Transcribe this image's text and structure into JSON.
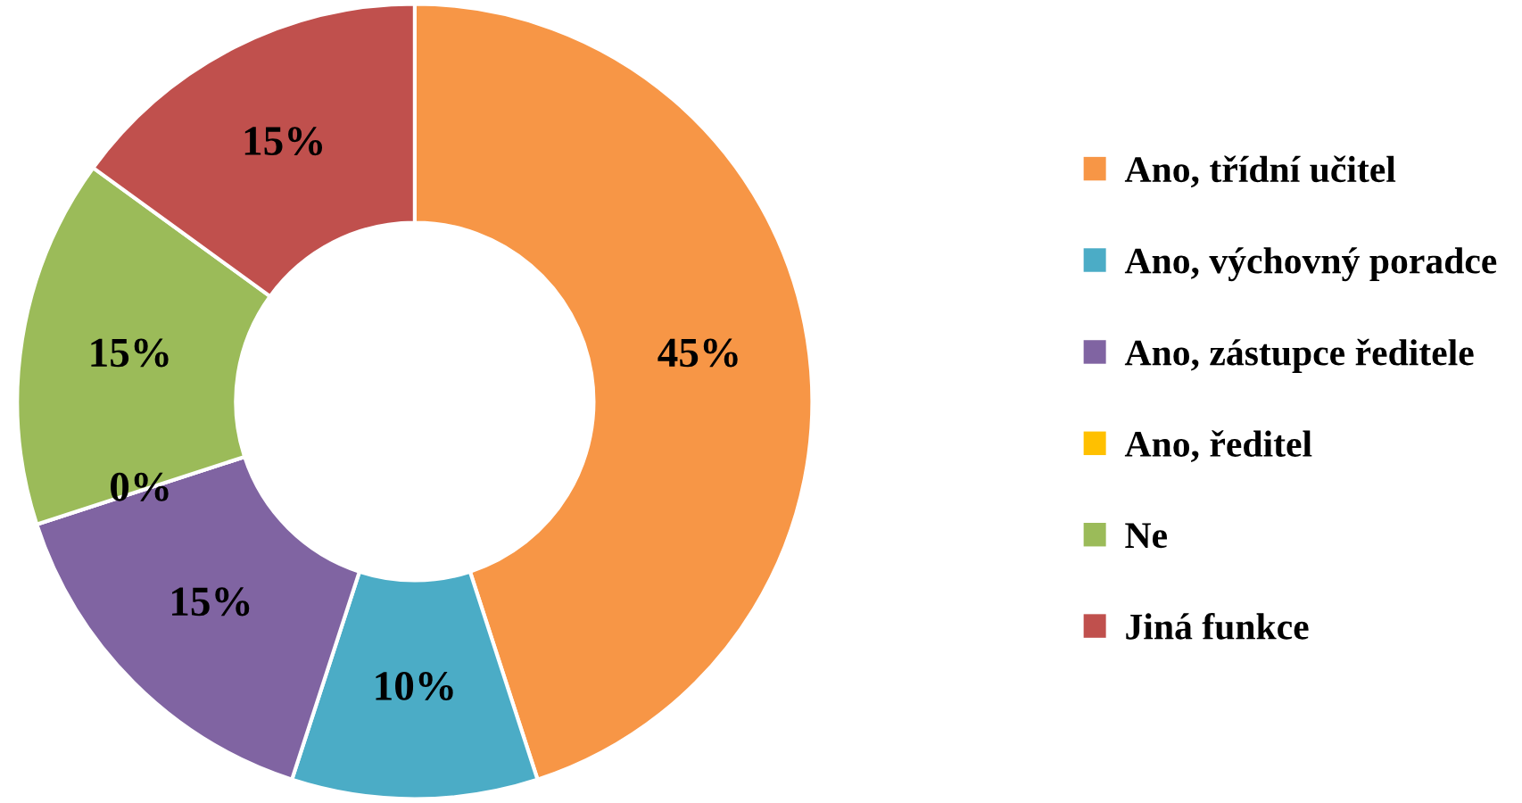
{
  "chart_data": {
    "type": "donut",
    "categories": [
      "Ano, třídní učitel",
      "Ano, výchovný poradce",
      "Ano, zástupce ředitele",
      "Ano, ředitel",
      "Ne",
      "Jiná funkce"
    ],
    "values": [
      45,
      10,
      15,
      0,
      15,
      15
    ],
    "value_labels": [
      "45%",
      "10%",
      "15%",
      "0%",
      "15%",
      "15%"
    ],
    "colors": [
      "#f79646",
      "#4bacc6",
      "#8064a2",
      "#ffc000",
      "#9bbb59",
      "#c0504d"
    ],
    "legend": "right"
  }
}
